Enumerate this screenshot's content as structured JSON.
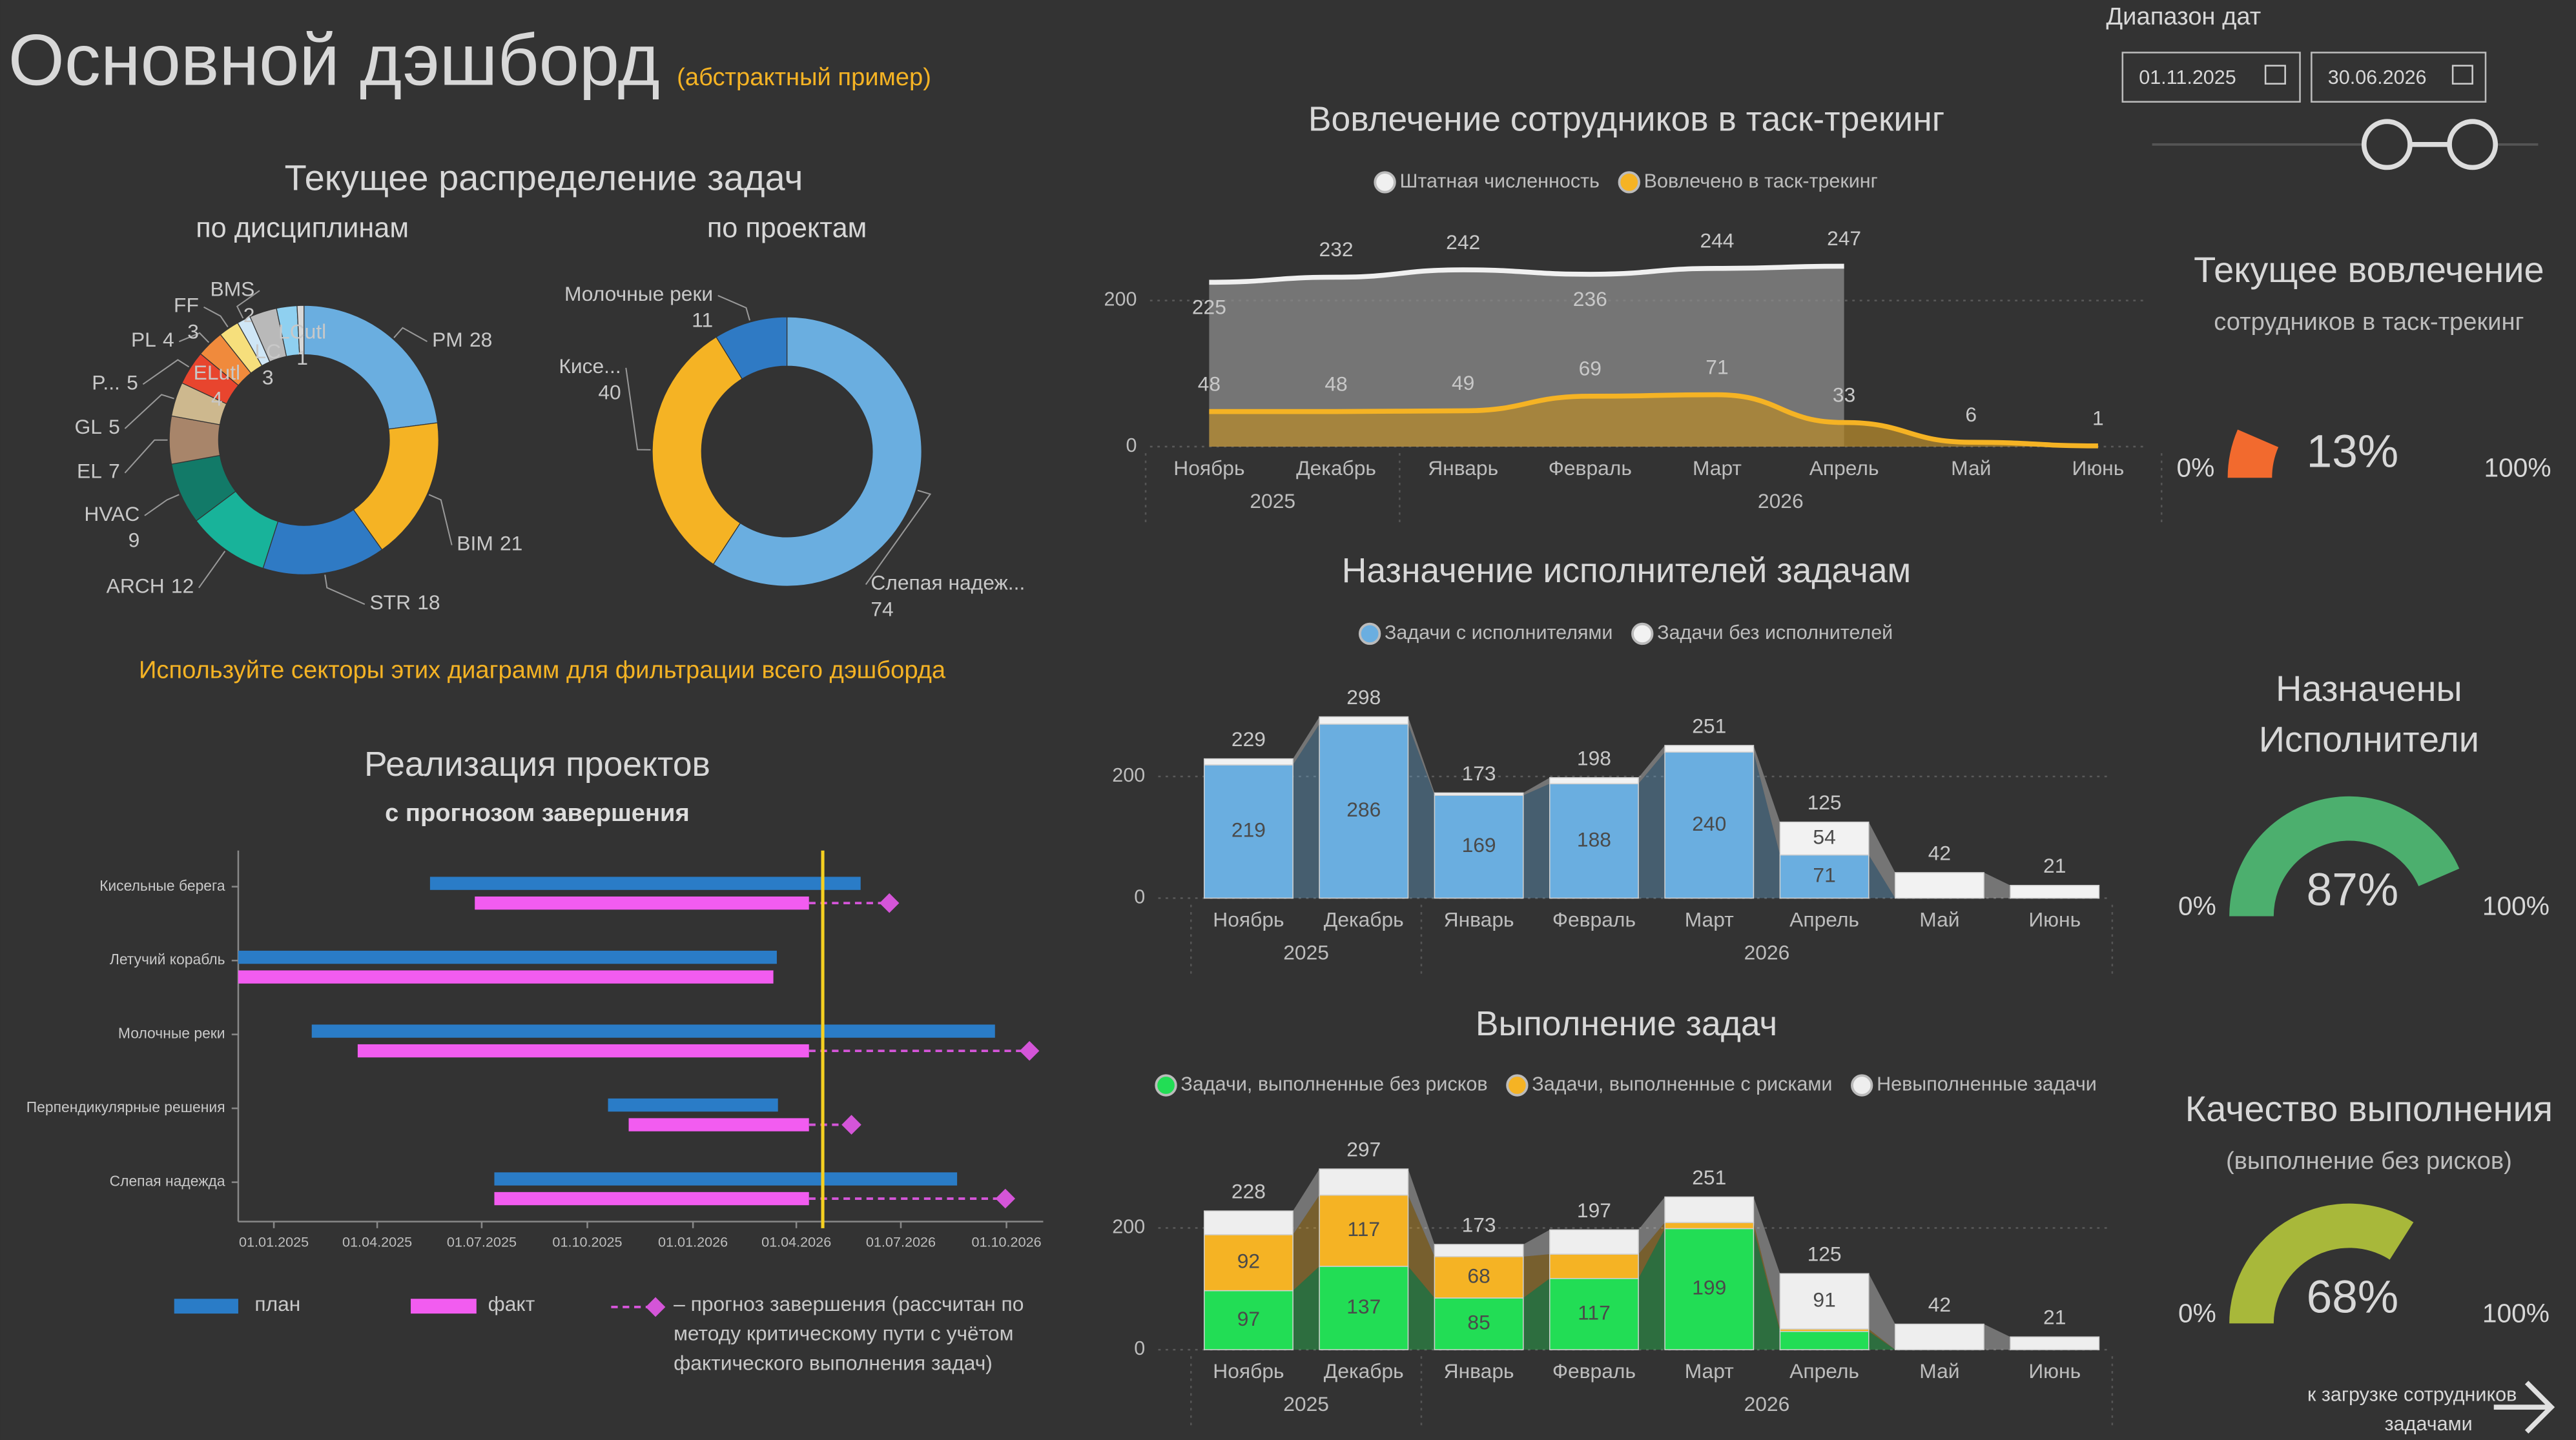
{
  "header": {
    "title": "Основной дэшборд",
    "subtitle": "(абстрактный пример)"
  },
  "date_range": {
    "label": "Диапазон дат",
    "start": "01.11.2025",
    "end": "30.06.2026"
  },
  "distribution": {
    "title": "Текущее распределение задач",
    "hint": "Используйте секторы этих диаграмм для фильтрации всего дэшборда"
  },
  "chart_data": [
    {
      "type": "pie",
      "title": "по дисциплинам",
      "categories": [
        "PM",
        "BIM",
        "STR",
        "ARCH",
        "HVAC",
        "EL",
        "GL",
        "P...",
        "PL",
        "FF",
        "BMS",
        "ELutl",
        "LC",
        "LCutl"
      ],
      "values": [
        28,
        21,
        18,
        12,
        9,
        7,
        5,
        5,
        4,
        3,
        2,
        4,
        3,
        1
      ],
      "colors": [
        "#6aaee0",
        "#f5b324",
        "#2f7ac4",
        "#18b39a",
        "#127a68",
        "#a8856a",
        "#cdb88e",
        "#e8452e",
        "#f08a3c",
        "#f6df7c",
        "#cfe6f6",
        "#b9b9b9",
        "#8fd0f0",
        "#d8d8d8"
      ]
    },
    {
      "type": "pie",
      "title": "по проектам",
      "categories": [
        "Слепая надеж...",
        "Кисе...",
        "Молочные реки"
      ],
      "values": [
        74,
        40,
        11
      ],
      "colors": [
        "#6aaee0",
        "#f5b324",
        "#2f7ac4"
      ]
    },
    {
      "type": "area",
      "title": "Вовлечение сотрудников в таск-трекинг",
      "categories": [
        "Ноябрь",
        "Декабрь",
        "Январь",
        "Февраль",
        "Март",
        "Апрель",
        "Май",
        "Июнь"
      ],
      "x_groups": [
        {
          "label": "2025",
          "span": 2
        },
        {
          "label": "2026",
          "span": 6
        }
      ],
      "series": [
        {
          "name": "Штатная численность",
          "color": "#f0f0f0",
          "fill": "#8c8c8c",
          "values": [
            225,
            232,
            242,
            236,
            244,
            247,
            null,
            null
          ]
        },
        {
          "name": "Вовлечено в таск-трекинг",
          "color": "#f5b324",
          "fill": "#b58a2c",
          "values": [
            48,
            48,
            49,
            69,
            71,
            33,
            6,
            1
          ]
        }
      ],
      "ylim": [
        0,
        290
      ],
      "yticks": [
        0,
        200
      ],
      "grid": true
    },
    {
      "type": "stacked_bar",
      "title": "Назначение исполнителей задачам",
      "categories": [
        "Ноябрь",
        "Декабрь",
        "Январь",
        "Февраль",
        "Март",
        "Апрель",
        "Май",
        "Июнь"
      ],
      "x_groups": [
        {
          "label": "2025",
          "span": 2
        },
        {
          "label": "2026",
          "span": 6
        }
      ],
      "series": [
        {
          "name": "Задачи с исполнителями",
          "color": "#6aaee0",
          "values": [
            219,
            286,
            169,
            188,
            240,
            71,
            0,
            0
          ]
        },
        {
          "name": "Задачи без исполнителей",
          "color": "#f2f2f2",
          "values": [
            10,
            12,
            4,
            10,
            11,
            54,
            42,
            21
          ]
        }
      ],
      "totals": [
        229,
        298,
        173,
        198,
        251,
        125,
        42,
        21
      ],
      "ylim": [
        0,
        340
      ],
      "yticks": [
        0,
        200
      ],
      "grid": true
    },
    {
      "type": "stacked_bar",
      "title": "Выполнение задач",
      "categories": [
        "Ноябрь",
        "Декабрь",
        "Январь",
        "Февраль",
        "Март",
        "Апрель",
        "Май",
        "Июнь"
      ],
      "x_groups": [
        {
          "label": "2025",
          "span": 2
        },
        {
          "label": "2026",
          "span": 6
        }
      ],
      "series": [
        {
          "name": "Задачи, выполненные без рисков",
          "color": "#22dd55",
          "values": [
            97,
            137,
            85,
            117,
            199,
            30,
            0,
            0
          ]
        },
        {
          "name": "Задачи, выполненные с рисками",
          "color": "#f5b324",
          "values": [
            92,
            117,
            68,
            40,
            10,
            4,
            0,
            0
          ]
        },
        {
          "name": "Невыполненные задачи",
          "color": "#eeeeee",
          "values": [
            39,
            43,
            20,
            40,
            42,
            91,
            42,
            21
          ]
        }
      ],
      "totals": [
        228,
        297,
        173,
        197,
        251,
        125,
        42,
        21
      ],
      "ylim": [
        0,
        340
      ],
      "yticks": [
        0,
        200
      ],
      "grid": true
    },
    {
      "type": "gantt",
      "title": "Реализация проектов",
      "subtitle": "с прогнозом завершения",
      "categories": [
        "Кисельные берега",
        "Летучий корабль",
        "Молочные реки",
        "Перпендикулярные решения",
        "Слепая надежда"
      ],
      "series": [
        {
          "name": "план",
          "color": "#2a7cc7",
          "starts": [
            "17.05.2025",
            "01.12.2024",
            "03.02.2025",
            "19.10.2025",
            "12.07.2025"
          ],
          "ends": [
            "27.05.2026",
            "15.03.2026",
            "21.09.2026",
            "16.03.2026",
            "19.08.2026"
          ]
        },
        {
          "name": "факт",
          "color": "#f25cf0",
          "starts": [
            "25.06.2025",
            "01.12.2024",
            "15.03.2025",
            "06.11.2025",
            "12.07.2025"
          ],
          "ends": [
            "12.04.2026",
            "12.03.2026",
            "12.04.2026",
            "12.04.2026",
            "12.04.2026"
          ]
        }
      ],
      "forecast": {
        "name": [
          "– прогноз завершения (рассчитан по",
          "методу критическому пути с учётом",
          "фактического выполнения задач)"
        ],
        "color": "#d455d8",
        "values": [
          "21.06.2026",
          null,
          "21.10.2026",
          "19.05.2026",
          "30.09.2026"
        ]
      },
      "today": "24.04.2026",
      "today_color": "#f5d020",
      "xlim": [
        "01.12.2024",
        "02.11.2026"
      ],
      "xticks": [
        "01.01.2025",
        "01.04.2025",
        "01.07.2025",
        "01.10.2025",
        "01.01.2026",
        "01.04.2026",
        "01.07.2026",
        "01.10.2026"
      ]
    },
    {
      "type": "gauge",
      "title": "Текущее вовлечение",
      "subtitle": "сотрудников в таск-трекинг",
      "values": [
        13
      ],
      "value_labels": [
        "13%"
      ],
      "color": "#f26a2e",
      "ylim": [
        0,
        100
      ],
      "yticks": [
        {
          "value": 0,
          "label": "0%"
        },
        {
          "value": 100,
          "label": "100%"
        }
      ]
    },
    {
      "type": "gauge",
      "title": [
        "Назначены",
        "Исполнители"
      ],
      "values": [
        87
      ],
      "value_labels": [
        "87%"
      ],
      "color": "#4caf6e",
      "ylim": [
        0,
        100
      ],
      "yticks": [
        {
          "value": 0,
          "label": "0%"
        },
        {
          "value": 100,
          "label": "100%"
        }
      ]
    },
    {
      "type": "gauge",
      "title": "Качество выполнения",
      "subtitle": "(выполнение без рисков)",
      "values": [
        68
      ],
      "value_labels": [
        "68%"
      ],
      "color": "#a8b83a",
      "ylim": [
        0,
        100
      ],
      "yticks": [
        {
          "value": 0,
          "label": "0%"
        },
        {
          "value": 100,
          "label": "100%"
        }
      ]
    }
  ],
  "link": {
    "lines": [
      "к загрузке сотрудников",
      "задачами"
    ]
  }
}
